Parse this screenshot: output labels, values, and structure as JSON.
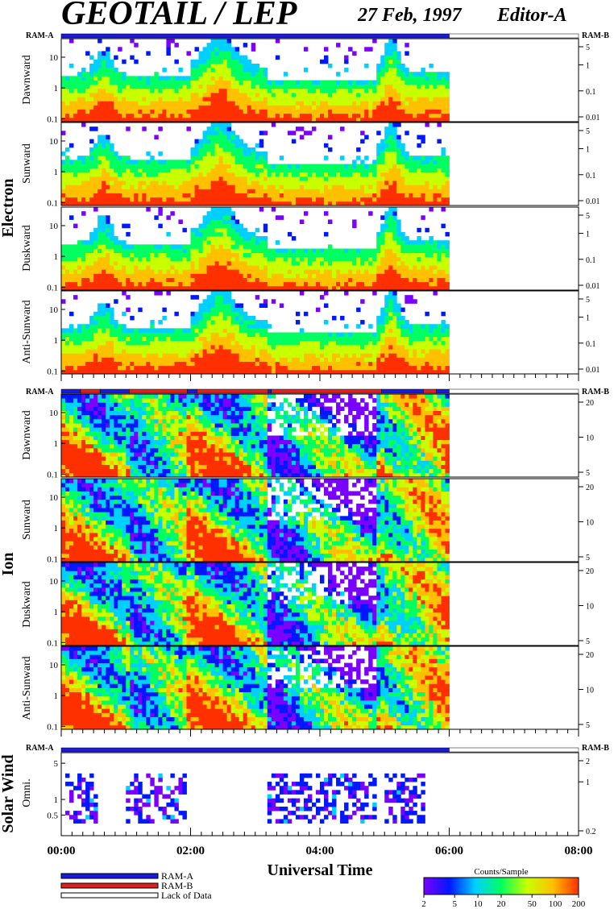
{
  "header": {
    "title": "GEOTAIL / LEP",
    "date": "27 Feb, 1997",
    "editor": "Editor-A"
  },
  "colors": {
    "ram_a": "#1a1adb",
    "ram_b": "#e02020",
    "lack_of_data": "#ffffff",
    "colorbar_stops": [
      "#7a00ff",
      "#0018ff",
      "#00d0ff",
      "#00ff60",
      "#c8ff00",
      "#ffc000",
      "#ff3000"
    ]
  },
  "chart_data": [
    {
      "type": "heatmap",
      "group": "Electron",
      "panels": [
        {
          "label": "Dawnward",
          "ylim": [
            0.08,
            40
          ],
          "left_ticks": [
            "10",
            "1",
            "0.1"
          ],
          "right_ticks": [
            "5",
            "1",
            "0.1",
            "0.01"
          ]
        },
        {
          "label": "Sunward",
          "ylim": [
            0.08,
            40
          ],
          "left_ticks": [
            "10",
            "1",
            "0.1"
          ],
          "right_ticks": [
            "5",
            "1",
            "0.1",
            "0.01"
          ]
        },
        {
          "label": "Duskward",
          "ylim": [
            0.08,
            40
          ],
          "left_ticks": [
            "10",
            "1",
            "0.1"
          ],
          "right_ticks": [
            "5",
            "1",
            "0.1",
            "0.01"
          ]
        },
        {
          "label": "Anti-Sunward",
          "ylim": [
            0.08,
            40
          ],
          "left_ticks": [
            "10",
            "1",
            "0.1"
          ],
          "right_ticks": [
            "5",
            "1",
            "0.1",
            "0.01"
          ]
        }
      ],
      "mode_bar_labels": [
        "RAM-A",
        "RAM-B"
      ],
      "mode_segments": [
        {
          "mode": "RAM-A",
          "start_hr": 0.0,
          "end_hr": 6.0
        },
        {
          "mode": "Lack of Data",
          "start_hr": 6.0,
          "end_hr": 8.0
        }
      ]
    },
    {
      "type": "heatmap",
      "group": "Ion",
      "panels": [
        {
          "label": "Dawnward",
          "ylim": [
            0.08,
            40
          ],
          "left_ticks": [
            "10",
            "1",
            "0.1"
          ],
          "right_ticks": [
            "20",
            "10",
            "5"
          ]
        },
        {
          "label": "Sunward",
          "ylim": [
            0.08,
            40
          ],
          "left_ticks": [
            "10",
            "1",
            "0.1"
          ],
          "right_ticks": [
            "20",
            "10",
            "5"
          ]
        },
        {
          "label": "Duskward",
          "ylim": [
            0.08,
            40
          ],
          "left_ticks": [
            "10",
            "1",
            "0.1"
          ],
          "right_ticks": [
            "20",
            "10",
            "5"
          ]
        },
        {
          "label": "Anti-Sunward",
          "ylim": [
            0.08,
            40
          ],
          "left_ticks": [
            "10",
            "1",
            "0.1"
          ],
          "right_ticks": [
            "20",
            "10",
            "5"
          ]
        }
      ],
      "mode_bar_labels": [
        "RAM-A",
        "RAM-B"
      ],
      "mode_segments": [
        {
          "mode": "RAM-A",
          "start_hr": 0.0,
          "end_hr": 0.3
        },
        {
          "mode": "RAM-B",
          "start_hr": 0.3,
          "end_hr": 0.6
        },
        {
          "mode": "RAM-A",
          "start_hr": 0.6,
          "end_hr": 1.05
        },
        {
          "mode": "RAM-B",
          "start_hr": 1.05,
          "end_hr": 1.95
        },
        {
          "mode": "RAM-A",
          "start_hr": 1.95,
          "end_hr": 2.1
        },
        {
          "mode": "RAM-B",
          "start_hr": 2.1,
          "end_hr": 3.2
        },
        {
          "mode": "RAM-A",
          "start_hr": 3.2,
          "end_hr": 3.25
        },
        {
          "mode": "RAM-B",
          "start_hr": 3.25,
          "end_hr": 4.95
        },
        {
          "mode": "RAM-A",
          "start_hr": 4.95,
          "end_hr": 5.6
        },
        {
          "mode": "RAM-B",
          "start_hr": 5.6,
          "end_hr": 5.8
        },
        {
          "mode": "RAM-A",
          "start_hr": 5.8,
          "end_hr": 6.0
        },
        {
          "mode": "Lack of Data",
          "start_hr": 6.0,
          "end_hr": 8.0
        }
      ]
    },
    {
      "type": "heatmap",
      "group": "Solar Wind",
      "panels": [
        {
          "label": "Omni.",
          "ylim": [
            0.2,
            8
          ],
          "left_ticks": [
            "5",
            "1",
            "0.5"
          ],
          "right_ticks": [
            "2",
            "1",
            "0.2"
          ]
        }
      ],
      "mode_bar_labels": [
        "RAM-A",
        "RAM-B"
      ],
      "mode_segments": [
        {
          "mode": "RAM-A",
          "start_hr": 0.0,
          "end_hr": 6.0
        },
        {
          "mode": "Lack of Data",
          "start_hr": 6.0,
          "end_hr": 8.0
        }
      ]
    }
  ],
  "x_axis": {
    "label": "Universal Time",
    "xlim_hr": [
      0,
      8
    ],
    "tick_labels": [
      "00:00",
      "02:00",
      "04:00",
      "06:00",
      "08:00"
    ],
    "data_end_hr": 6.0
  },
  "legend": {
    "items": [
      "RAM-A",
      "RAM-B",
      "Lack of Data"
    ]
  },
  "colorbar": {
    "title": "Counts/Sample",
    "ticks": [
      "2",
      "5",
      "10",
      "20",
      "50",
      "100",
      "200"
    ],
    "range": [
      2,
      200
    ],
    "scale": "log"
  }
}
